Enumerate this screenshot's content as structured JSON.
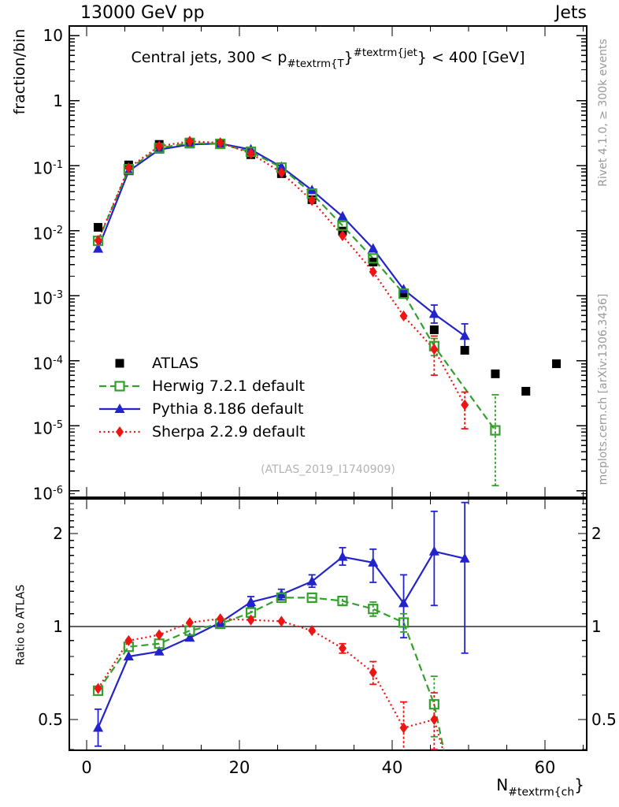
{
  "header": {
    "left": "13000 GeV pp",
    "right": "Jets"
  },
  "plot_title": {
    "prefix": "Central jets, 300 < p",
    "sub": "#textrm{T",
    "brace1": "}",
    "sup": "#textrm{jet",
    "brace2": "}",
    "suffix": " < 400 [GeV]"
  },
  "watermark": "(ATLAS_2019_I1740909)",
  "side_notes": {
    "top": "Rivet 4.1.0, ≥ 300k events",
    "bottom": "mcplots.cern.ch [arXiv:1306.3436]"
  },
  "axes": {
    "main_ylabel": "fraction/bin",
    "ratio_ylabel": "Ratio to ATLAS",
    "xlabel": {
      "base": "N",
      "sub": "#textrm{ch",
      "brace": "}"
    },
    "main_yticks": [
      {
        "v": 10,
        "b": "10",
        "e": ""
      },
      {
        "v": 1,
        "b": "1",
        "e": ""
      },
      {
        "v": 0.1,
        "b": "10",
        "e": "-1"
      },
      {
        "v": 0.01,
        "b": "10",
        "e": "-2"
      },
      {
        "v": 0.001,
        "b": "10",
        "e": "-3"
      },
      {
        "v": 0.0001,
        "b": "10",
        "e": "-4"
      },
      {
        "v": 1e-05,
        "b": "10",
        "e": "-5"
      },
      {
        "v": 1e-06,
        "b": "10",
        "e": "-6"
      }
    ],
    "ratio_yticks": [
      {
        "v": 2,
        "t": "2"
      },
      {
        "v": 1,
        "t": "1"
      },
      {
        "v": 0.5,
        "t": "0.5"
      }
    ],
    "xticks": [
      {
        "v": 0,
        "t": "0"
      },
      {
        "v": 20,
        "t": "20"
      },
      {
        "v": 40,
        "t": "40"
      },
      {
        "v": 60,
        "t": "60"
      }
    ]
  },
  "legend": [
    {
      "label": "ATLAS",
      "color": "#000000",
      "marker": "square-filled",
      "line": "none"
    },
    {
      "label": "Herwig 7.2.1 default",
      "color": "#33a02c",
      "marker": "square-open",
      "line": "dashed"
    },
    {
      "label": "Pythia 8.186 default",
      "color": "#2323cc",
      "marker": "triangle-filled",
      "line": "solid"
    },
    {
      "label": "Sherpa 2.2.9 default",
      "color": "#ee1414",
      "marker": "diamond-filled",
      "line": "dotted"
    }
  ],
  "chart_data": {
    "type": "line",
    "title": "Central jets, 300 < pT^jet < 400 [GeV] — charged-particle multiplicity, fraction/bin vs N_ch, with MC/data ratio",
    "xlabel": "N_ch",
    "xlim": [
      -2.3,
      65.5
    ],
    "x_centers": [
      1.5,
      5.5,
      9.5,
      13.5,
      17.5,
      21.5,
      25.5,
      29.5,
      33.5,
      37.5,
      41.5,
      45.5,
      49.5,
      53.5,
      57.5,
      61.5
    ],
    "panels": {
      "main": {
        "ylabel": "fraction/bin",
        "yscale": "log",
        "ylim": [
          8e-07,
          14
        ],
        "series": [
          {
            "name": "ATLAS",
            "color": "#000000",
            "marker": "square-filled",
            "line": "none",
            "values": [
              0.0113,
              0.103,
              0.213,
              0.231,
              0.213,
              0.148,
              0.0756,
              0.0301,
              0.0099,
              0.0033,
              0.00105,
              0.0003,
              0.000145,
              6.3e-05,
              3.4e-05,
              9e-05
            ],
            "err": {}
          },
          {
            "name": "Pythia 8.186 default",
            "color": "#2323cc",
            "marker": "triangle-filled",
            "line": "solid",
            "values": [
              0.0053,
              0.0824,
              0.177,
              0.213,
              0.219,
              0.178,
              0.096,
              0.0421,
              0.0166,
              0.00531,
              0.00125,
              0.000525,
              0.000241,
              null,
              null,
              null
            ],
            "err": {
              "11": [
                0.00038,
                0.00072
              ],
              "12": [
                0.00015,
                0.00037
              ]
            }
          },
          {
            "name": "Herwig 7.2.1 default",
            "color": "#33a02c",
            "marker": "square-open",
            "line": "dashed",
            "values": [
              0.007,
              0.0886,
              0.187,
              0.224,
              0.217,
              0.164,
              0.0937,
              0.0373,
              0.012,
              0.00376,
              0.00108,
              0.000168,
              null,
              8.5e-06,
              null,
              null
            ],
            "err": {
              "11": [
                0.00012,
                0.00022
              ],
              "13": [
                1.2e-06,
                3e-05
              ]
            }
          },
          {
            "name": "Sherpa 2.2.9 default",
            "color": "#ee1414",
            "marker": "diamond-filled",
            "line": "dotted",
            "values": [
              0.0071,
              0.0927,
              0.2,
              0.238,
              0.226,
              0.155,
              0.0786,
              0.0292,
              0.0084,
              0.00234,
              0.00049,
              0.00015,
              2.1e-05,
              null,
              null,
              null
            ],
            "err": {
              "11": [
                6e-05,
                0.00024
              ],
              "12": [
                9e-06,
                3.3e-05
              ]
            }
          }
        ]
      },
      "ratio": {
        "ylabel": "Ratio to ATLAS",
        "yscale": "log",
        "ylim": [
          0.4,
          2.59
        ],
        "baseline": 1,
        "series": [
          {
            "name": "Pythia 8.186 default",
            "color": "#2323cc",
            "marker": "triangle-filled",
            "line": "solid",
            "values": [
              0.47,
              0.8,
              0.83,
              0.92,
              1.03,
              1.2,
              1.27,
              1.4,
              1.68,
              1.61,
              1.19,
              1.75,
              1.66,
              null,
              null,
              null
            ],
            "err": {
              "0": [
                0.41,
                0.54
              ],
              "5": [
                1.16,
                1.25
              ],
              "6": [
                1.22,
                1.32
              ],
              "7": [
                1.34,
                1.47
              ],
              "8": [
                1.58,
                1.8
              ],
              "9": [
                1.39,
                1.78
              ],
              "10": [
                0.92,
                1.47
              ],
              "11": [
                1.17,
                2.36
              ],
              "12": [
                0.82,
                2.52
              ]
            }
          },
          {
            "name": "Herwig 7.2.1 default",
            "color": "#33a02c",
            "marker": "square-open",
            "line": "dashed",
            "values": [
              0.62,
              0.86,
              0.88,
              0.97,
              1.02,
              1.11,
              1.24,
              1.24,
              1.21,
              1.14,
              1.03,
              0.56,
              null,
              null,
              null,
              null
            ],
            "err": {
              "5": [
                1.07,
                1.15
              ],
              "8": [
                1.17,
                1.25
              ],
              "9": [
                1.08,
                1.2
              ],
              "10": [
                0.96,
                1.1
              ],
              "11": [
                0.44,
                0.69
              ]
            },
            "tail": [
              47.8,
              0.3
            ]
          },
          {
            "name": "Sherpa 2.2.9 default",
            "color": "#ee1414",
            "marker": "diamond-filled",
            "line": "dotted",
            "values": [
              0.63,
              0.9,
              0.94,
              1.03,
              1.06,
              1.05,
              1.04,
              0.97,
              0.85,
              0.71,
              0.47,
              0.5,
              null,
              null,
              null,
              null
            ],
            "err": {
              "8": [
                0.82,
                0.88
              ],
              "9": [
                0.65,
                0.77
              ],
              "10": [
                0.38,
                0.57
              ],
              "11": [
                0.4,
                0.61
              ]
            },
            "tail": [
              47.9,
              0.31
            ]
          }
        ]
      }
    }
  }
}
